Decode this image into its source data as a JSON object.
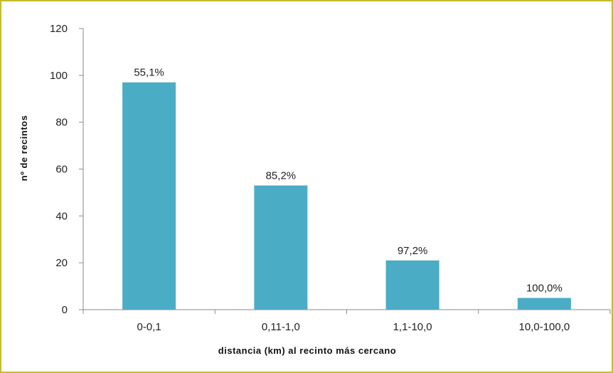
{
  "chart_data": {
    "type": "bar",
    "categories": [
      "0-0,1",
      "0,11-1,0",
      "1,1-10,0",
      "10,0-100,0"
    ],
    "values": [
      97,
      53,
      21,
      5
    ],
    "data_labels": [
      "55,1%",
      "85,2%",
      "97,2%",
      "100,0%"
    ],
    "xlabel": "distancia (km) al recinto más cercano",
    "ylabel": "nº de recintos",
    "ylim": [
      0,
      120
    ],
    "yticks": [
      0,
      20,
      40,
      60,
      80,
      100,
      120
    ],
    "grid": false,
    "legend": "none",
    "bar_color": "#4bacc6",
    "frame_color": "#c8bb2c"
  }
}
